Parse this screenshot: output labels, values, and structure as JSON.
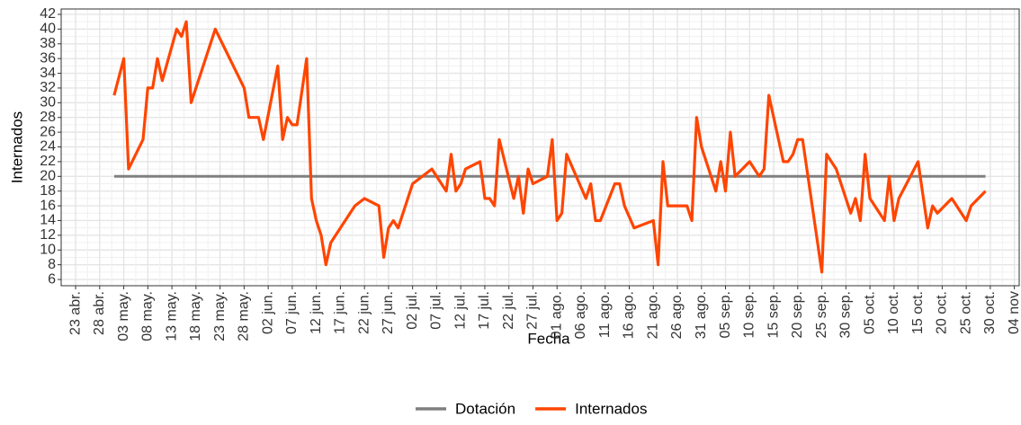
{
  "chart_data": {
    "type": "line",
    "y_label": "Internados",
    "x_label": "Fecha",
    "series": [
      {
        "name": "Dotación",
        "color": "#808080",
        "x": [
          "05-01",
          "10-29"
        ],
        "values": [
          20,
          20
        ]
      },
      {
        "name": "Internados",
        "color": "#ff4500",
        "x": [
          "05-01",
          "05-03",
          "05-04",
          "05-07",
          "05-08",
          "05-09",
          "05-10",
          "05-11",
          "05-14",
          "05-15",
          "05-16",
          "05-17",
          "05-22",
          "05-28",
          "05-29",
          "05-31",
          "06-01",
          "06-04",
          "06-05",
          "06-06",
          "06-07",
          "06-08",
          "06-10",
          "06-11",
          "06-12",
          "06-13",
          "06-14",
          "06-15",
          "06-20",
          "06-22",
          "06-25",
          "06-26",
          "06-27",
          "06-28",
          "06-29",
          "07-02",
          "07-06",
          "07-09",
          "07-10",
          "07-11",
          "07-12",
          "07-13",
          "07-16",
          "07-17",
          "07-18",
          "07-19",
          "07-20",
          "07-23",
          "07-24",
          "07-25",
          "07-26",
          "07-27",
          "07-30",
          "07-31",
          "08-01",
          "08-02",
          "08-03",
          "08-07",
          "08-08",
          "08-09",
          "08-10",
          "08-13",
          "08-14",
          "08-15",
          "08-17",
          "08-21",
          "08-22",
          "08-23",
          "08-24",
          "08-28",
          "08-29",
          "08-30",
          "08-31",
          "09-03",
          "09-04",
          "09-05",
          "09-06",
          "09-07",
          "09-10",
          "09-12",
          "09-13",
          "09-14",
          "09-17",
          "09-18",
          "09-19",
          "09-20",
          "09-21",
          "09-25",
          "09-26",
          "09-28",
          "10-01",
          "10-02",
          "10-03",
          "10-04",
          "10-05",
          "10-08",
          "10-09",
          "10-10",
          "10-11",
          "10-15",
          "10-17",
          "10-18",
          "10-19",
          "10-22",
          "10-25",
          "10-26",
          "10-29"
        ],
        "values": [
          31,
          36,
          21,
          25,
          32,
          32,
          36,
          33,
          40,
          39,
          41,
          30,
          40,
          32,
          28,
          28,
          25,
          35,
          25,
          28,
          27,
          27,
          36,
          17,
          14,
          12,
          8,
          11,
          16,
          17,
          16,
          9,
          13,
          14,
          13,
          19,
          21,
          18,
          23,
          18,
          19,
          21,
          22,
          17,
          17,
          16,
          25,
          17,
          20,
          15,
          21,
          19,
          20,
          25,
          14,
          15,
          23,
          17,
          19,
          14,
          14,
          19,
          19,
          16,
          13,
          14,
          8,
          22,
          16,
          16,
          14,
          28,
          24,
          18,
          22,
          18,
          26,
          20,
          22,
          20,
          21,
          31,
          22,
          22,
          23,
          25,
          25,
          7,
          23,
          21,
          15,
          17,
          14,
          23,
          17,
          14,
          20,
          14,
          17,
          22,
          13,
          16,
          15,
          17,
          14,
          16,
          18
        ]
      }
    ],
    "xlim": [
      "04-20",
      "11-05"
    ],
    "xticks": [
      {
        "value": "04-23",
        "label": "23 abr."
      },
      {
        "value": "04-28",
        "label": "28 abr."
      },
      {
        "value": "05-03",
        "label": "03 may."
      },
      {
        "value": "05-08",
        "label": "08 may."
      },
      {
        "value": "05-13",
        "label": "13 may."
      },
      {
        "value": "05-18",
        "label": "18 may."
      },
      {
        "value": "05-23",
        "label": "23 may."
      },
      {
        "value": "05-28",
        "label": "28 may."
      },
      {
        "value": "06-02",
        "label": "02 jun."
      },
      {
        "value": "06-07",
        "label": "07 jun."
      },
      {
        "value": "06-12",
        "label": "12 jun."
      },
      {
        "value": "06-17",
        "label": "17 jun."
      },
      {
        "value": "06-22",
        "label": "22 jun."
      },
      {
        "value": "06-27",
        "label": "27 jun."
      },
      {
        "value": "07-02",
        "label": "02 jul."
      },
      {
        "value": "07-07",
        "label": "07 jul."
      },
      {
        "value": "07-12",
        "label": "12 jul."
      },
      {
        "value": "07-17",
        "label": "17 jul."
      },
      {
        "value": "07-22",
        "label": "22 jul."
      },
      {
        "value": "07-27",
        "label": "27 jul."
      },
      {
        "value": "08-01",
        "label": "01 ago."
      },
      {
        "value": "08-06",
        "label": "06 ago."
      },
      {
        "value": "08-11",
        "label": "11 ago."
      },
      {
        "value": "08-16",
        "label": "16 ago."
      },
      {
        "value": "08-21",
        "label": "21 ago."
      },
      {
        "value": "08-26",
        "label": "26 ago."
      },
      {
        "value": "08-31",
        "label": "31 ago."
      },
      {
        "value": "09-05",
        "label": "05 sep."
      },
      {
        "value": "09-10",
        "label": "10 sep."
      },
      {
        "value": "09-15",
        "label": "15 sep."
      },
      {
        "value": "09-20",
        "label": "20 sep."
      },
      {
        "value": "09-25",
        "label": "25 sep."
      },
      {
        "value": "09-30",
        "label": "30 sep."
      },
      {
        "value": "10-05",
        "label": "05 oct."
      },
      {
        "value": "10-10",
        "label": "10 oct."
      },
      {
        "value": "10-15",
        "label": "15 oct."
      },
      {
        "value": "10-20",
        "label": "20 oct."
      },
      {
        "value": "10-25",
        "label": "25 oct."
      },
      {
        "value": "10-30",
        "label": "30 oct."
      },
      {
        "value": "11-04",
        "label": "04 nov"
      }
    ],
    "ylim": [
      5.15,
      42.73
    ],
    "yticks": [
      6,
      8,
      10,
      12,
      14,
      16,
      18,
      20,
      22,
      24,
      26,
      28,
      30,
      32,
      34,
      36,
      38,
      40,
      42
    ],
    "grid": true,
    "legend": "bottom"
  }
}
